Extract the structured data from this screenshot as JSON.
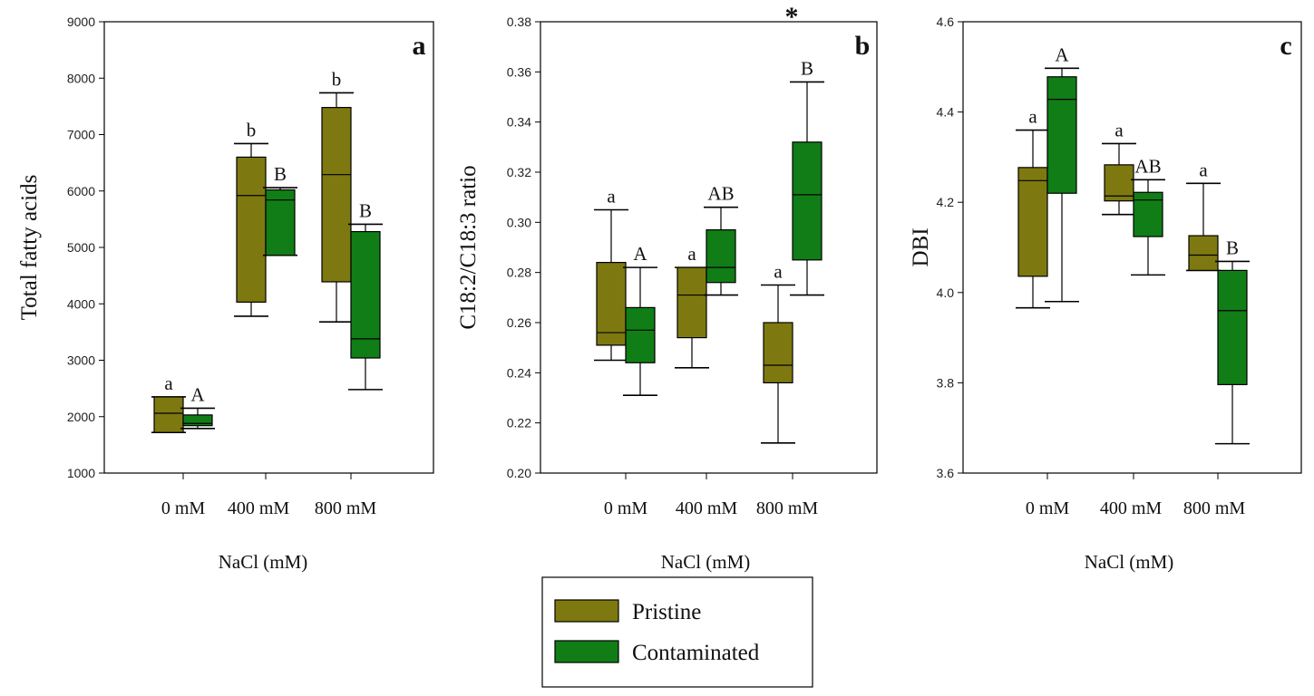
{
  "colors": {
    "pristine": "#7d7910",
    "contaminated": "#117d16",
    "line": "#000000"
  },
  "legend": [
    {
      "label": "Pristine",
      "color": "#7d7910"
    },
    {
      "label": "Contaminated",
      "color": "#117d16"
    }
  ],
  "chart_data": [
    {
      "type": "box",
      "panel_label": "a",
      "ylabel": "Total fatty acids",
      "xlabel": "NaCl (mM)",
      "categories": [
        "0 mM",
        "400 mM",
        "800 mM"
      ],
      "ylim": [
        1000,
        9000
      ],
      "yticks": [
        "1000",
        "2000",
        "3000",
        "4000",
        "5000",
        "6000",
        "7000",
        "8000",
        "9000"
      ],
      "series": [
        {
          "name": "Pristine",
          "boxes": [
            {
              "min": 1720,
              "q1": 1720,
              "median": 2060,
              "q3": 2350,
              "max": 2350,
              "letter": "a"
            },
            {
              "min": 3780,
              "q1": 4030,
              "median": 5920,
              "q3": 6600,
              "max": 6840,
              "letter": "b"
            },
            {
              "min": 3680,
              "q1": 4390,
              "median": 6290,
              "q3": 7480,
              "max": 7740,
              "letter": "b"
            }
          ]
        },
        {
          "name": "Contaminated",
          "boxes": [
            {
              "min": 1790,
              "q1": 1840,
              "median": 1880,
              "q3": 2030,
              "max": 2150,
              "letter": "A"
            },
            {
              "min": 4860,
              "q1": 4860,
              "median": 5840,
              "q3": 6020,
              "max": 6060,
              "letter": "B"
            },
            {
              "min": 2480,
              "q1": 3040,
              "median": 3380,
              "q3": 5280,
              "max": 5410,
              "letter": "B"
            }
          ]
        }
      ]
    },
    {
      "type": "box",
      "panel_label": "b",
      "ylabel": "C18:2/C18:3 ratio",
      "xlabel": "NaCl (mM)",
      "categories": [
        "0 mM",
        "400 mM",
        "800 mM"
      ],
      "ylim": [
        0.2,
        0.38
      ],
      "yticks": [
        "0.20",
        "0.22",
        "0.24",
        "0.26",
        "0.28",
        "0.30",
        "0.32",
        "0.34",
        "0.36",
        "0.38"
      ],
      "annotation": "*",
      "series": [
        {
          "name": "Pristine",
          "boxes": [
            {
              "min": 0.245,
              "q1": 0.251,
              "median": 0.256,
              "q3": 0.284,
              "max": 0.305,
              "letter": "a"
            },
            {
              "min": 0.242,
              "q1": 0.254,
              "median": 0.271,
              "q3": 0.282,
              "max": 0.282,
              "letter": "a"
            },
            {
              "min": 0.212,
              "q1": 0.236,
              "median": 0.243,
              "q3": 0.26,
              "max": 0.275,
              "letter": "a"
            }
          ]
        },
        {
          "name": "Contaminated",
          "boxes": [
            {
              "min": 0.231,
              "q1": 0.244,
              "median": 0.257,
              "q3": 0.266,
              "max": 0.282,
              "letter": "A"
            },
            {
              "min": 0.271,
              "q1": 0.276,
              "median": 0.282,
              "q3": 0.297,
              "max": 0.306,
              "letter": "AB"
            },
            {
              "min": 0.271,
              "q1": 0.285,
              "median": 0.311,
              "q3": 0.332,
              "max": 0.356,
              "letter": "B"
            }
          ]
        }
      ]
    },
    {
      "type": "box",
      "panel_label": "c",
      "ylabel": "DBI",
      "xlabel": "NaCl (mM)",
      "categories": [
        "0 mM",
        "400 mM",
        "800 mM"
      ],
      "ylim": [
        3.6,
        4.6
      ],
      "yticks": [
        "3.6",
        "3.8",
        "4.0",
        "4.2",
        "4.4",
        "4.6"
      ],
      "series": [
        {
          "name": "Pristine",
          "boxes": [
            {
              "min": 3.966,
              "q1": 4.036,
              "median": 4.248,
              "q3": 4.277,
              "max": 4.36,
              "letter": "a"
            },
            {
              "min": 4.173,
              "q1": 4.203,
              "median": 4.214,
              "q3": 4.283,
              "max": 4.33,
              "letter": "a"
            },
            {
              "min": 4.049,
              "q1": 4.049,
              "median": 4.083,
              "q3": 4.126,
              "max": 4.242,
              "letter": "a"
            }
          ]
        },
        {
          "name": "Contaminated",
          "boxes": [
            {
              "min": 3.98,
              "q1": 4.22,
              "median": 4.428,
              "q3": 4.478,
              "max": 4.497,
              "letter": "A"
            },
            {
              "min": 4.039,
              "q1": 4.124,
              "median": 4.205,
              "q3": 4.222,
              "max": 4.25,
              "letter": "AB"
            },
            {
              "min": 3.665,
              "q1": 3.796,
              "median": 3.96,
              "q3": 4.049,
              "max": 4.069,
              "letter": "B"
            }
          ]
        }
      ]
    }
  ]
}
